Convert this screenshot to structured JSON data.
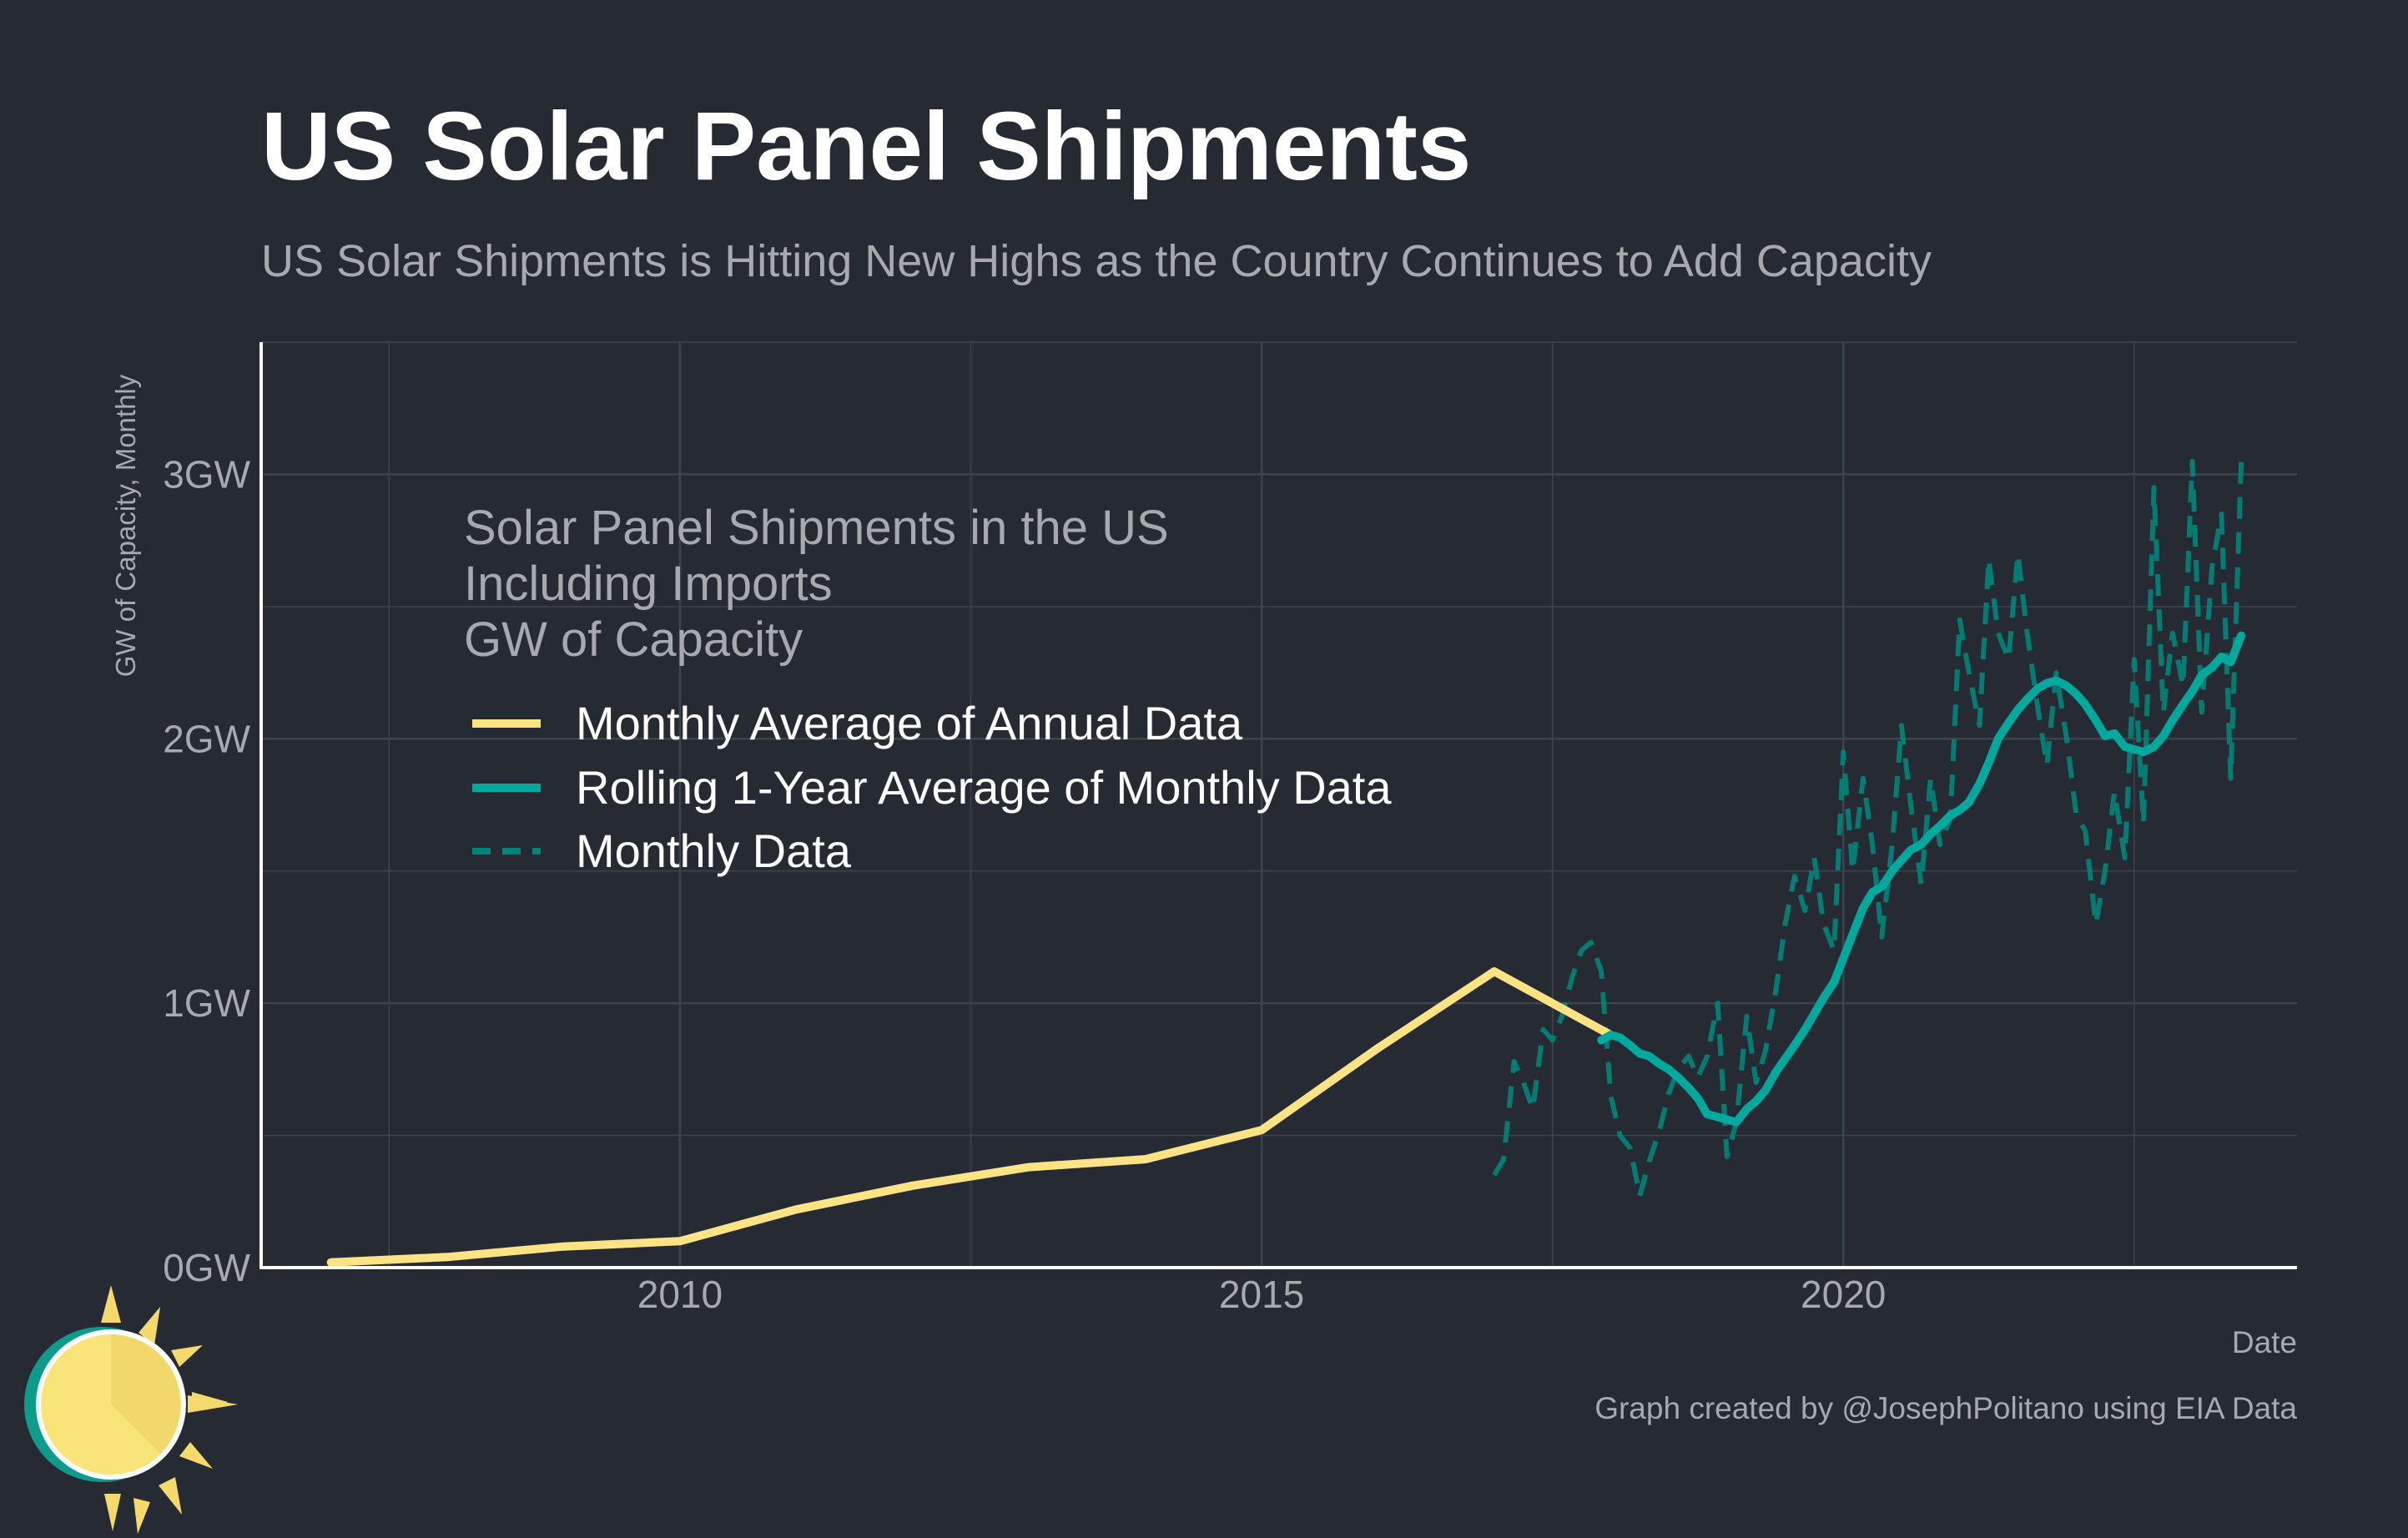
{
  "header": {
    "title": "US Solar Panel Shipments",
    "subtitle": "US Solar Shipments is Hitting New Highs as the Country Continues to Add Capacity"
  },
  "footer": {
    "caption": "Graph created by @JosephPolitano using EIA Data"
  },
  "colors": {
    "background": "#252a33",
    "annual": "#fde383",
    "rolling": "#00a99d",
    "monthly": "#00857a",
    "grid": "#3e444e",
    "axis": "#ffffff",
    "muted_text": "#a7a9ad"
  },
  "chart_data": {
    "type": "line",
    "xlabel": "Date",
    "ylabel": "GW of Capacity, Monthly",
    "xlim": [
      2006.4,
      2023.9
    ],
    "ylim": [
      0,
      3.5
    ],
    "x_ticks": [
      2010,
      2015,
      2020
    ],
    "x_tick_labels": [
      "2010",
      "2015",
      "2020"
    ],
    "y_ticks": [
      0,
      1,
      2,
      3
    ],
    "y_tick_labels": [
      "0GW",
      "1GW",
      "2GW",
      "3GW"
    ],
    "grid": true,
    "legend": {
      "title_lines": [
        "Solar Panel Shipments in the US",
        "Including Imports",
        "GW of Capacity"
      ],
      "placement": "upper-left"
    },
    "series": [
      {
        "name": "Monthly Average of Annual Data",
        "style": "solid",
        "color": "#fde383",
        "points": [
          [
            2007,
            0.02
          ],
          [
            2008,
            0.04
          ],
          [
            2009,
            0.08
          ],
          [
            2010,
            0.1
          ],
          [
            2011,
            0.22
          ],
          [
            2012,
            0.31
          ],
          [
            2013,
            0.38
          ],
          [
            2014,
            0.41
          ],
          [
            2015,
            0.52
          ],
          [
            2016,
            0.83
          ],
          [
            2017,
            1.12
          ],
          [
            2018,
            0.88
          ]
        ]
      },
      {
        "name": "Rolling 1-Year Average of Monthly Data",
        "style": "solid",
        "color": "#00a99d",
        "points": [
          [
            2017.92,
            0.86
          ],
          [
            2018.0,
            0.88
          ],
          [
            2018.08,
            0.87
          ],
          [
            2018.17,
            0.84
          ],
          [
            2018.25,
            0.81
          ],
          [
            2018.33,
            0.8
          ],
          [
            2018.42,
            0.77
          ],
          [
            2018.5,
            0.75
          ],
          [
            2018.58,
            0.72
          ],
          [
            2018.67,
            0.68
          ],
          [
            2018.75,
            0.64
          ],
          [
            2018.83,
            0.58
          ],
          [
            2018.92,
            0.57
          ],
          [
            2019.0,
            0.56
          ],
          [
            2019.08,
            0.55
          ],
          [
            2019.17,
            0.6
          ],
          [
            2019.25,
            0.63
          ],
          [
            2019.33,
            0.67
          ],
          [
            2019.42,
            0.74
          ],
          [
            2019.5,
            0.79
          ],
          [
            2019.58,
            0.84
          ],
          [
            2019.67,
            0.9
          ],
          [
            2019.75,
            0.96
          ],
          [
            2019.83,
            1.02
          ],
          [
            2019.92,
            1.08
          ],
          [
            2020.0,
            1.17
          ],
          [
            2020.08,
            1.26
          ],
          [
            2020.17,
            1.36
          ],
          [
            2020.25,
            1.42
          ],
          [
            2020.33,
            1.44
          ],
          [
            2020.42,
            1.5
          ],
          [
            2020.5,
            1.54
          ],
          [
            2020.58,
            1.58
          ],
          [
            2020.67,
            1.6
          ],
          [
            2020.75,
            1.64
          ],
          [
            2020.83,
            1.67
          ],
          [
            2020.92,
            1.71
          ],
          [
            2021.0,
            1.73
          ],
          [
            2021.08,
            1.76
          ],
          [
            2021.17,
            1.83
          ],
          [
            2021.25,
            1.91
          ],
          [
            2021.33,
            2.0
          ],
          [
            2021.42,
            2.06
          ],
          [
            2021.5,
            2.11
          ],
          [
            2021.58,
            2.15
          ],
          [
            2021.67,
            2.19
          ],
          [
            2021.75,
            2.21
          ],
          [
            2021.83,
            2.22
          ],
          [
            2021.92,
            2.2
          ],
          [
            2022.0,
            2.17
          ],
          [
            2022.08,
            2.13
          ],
          [
            2022.17,
            2.07
          ],
          [
            2022.25,
            2.01
          ],
          [
            2022.33,
            2.02
          ],
          [
            2022.42,
            1.97
          ],
          [
            2022.5,
            1.96
          ],
          [
            2022.58,
            1.95
          ],
          [
            2022.67,
            1.97
          ],
          [
            2022.75,
            2.01
          ],
          [
            2022.83,
            2.07
          ],
          [
            2022.92,
            2.13
          ],
          [
            2023.0,
            2.18
          ],
          [
            2023.08,
            2.24
          ],
          [
            2023.17,
            2.27
          ],
          [
            2023.25,
            2.31
          ],
          [
            2023.33,
            2.29
          ],
          [
            2023.42,
            2.39
          ]
        ]
      },
      {
        "name": "Monthly Data",
        "style": "dashed",
        "color": "#00857a",
        "points": [
          [
            2017.0,
            0.35
          ],
          [
            2017.08,
            0.41
          ],
          [
            2017.17,
            0.78
          ],
          [
            2017.25,
            0.7
          ],
          [
            2017.33,
            0.6
          ],
          [
            2017.42,
            0.9
          ],
          [
            2017.5,
            0.86
          ],
          [
            2017.58,
            0.95
          ],
          [
            2017.67,
            1.1
          ],
          [
            2017.75,
            1.2
          ],
          [
            2017.83,
            1.23
          ],
          [
            2017.92,
            1.12
          ],
          [
            2018.0,
            0.65
          ],
          [
            2018.08,
            0.5
          ],
          [
            2018.17,
            0.45
          ],
          [
            2018.25,
            0.27
          ],
          [
            2018.33,
            0.4
          ],
          [
            2018.42,
            0.52
          ],
          [
            2018.5,
            0.66
          ],
          [
            2018.58,
            0.75
          ],
          [
            2018.67,
            0.8
          ],
          [
            2018.75,
            0.72
          ],
          [
            2018.83,
            0.8
          ],
          [
            2018.92,
            1.0
          ],
          [
            2019.0,
            0.42
          ],
          [
            2019.08,
            0.55
          ],
          [
            2019.17,
            0.95
          ],
          [
            2019.25,
            0.7
          ],
          [
            2019.33,
            0.82
          ],
          [
            2019.42,
            1.05
          ],
          [
            2019.5,
            1.3
          ],
          [
            2019.58,
            1.48
          ],
          [
            2019.67,
            1.35
          ],
          [
            2019.75,
            1.55
          ],
          [
            2019.83,
            1.3
          ],
          [
            2019.92,
            1.2
          ],
          [
            2020.0,
            1.95
          ],
          [
            2020.08,
            1.5
          ],
          [
            2020.17,
            1.85
          ],
          [
            2020.25,
            1.6
          ],
          [
            2020.33,
            1.25
          ],
          [
            2020.42,
            1.6
          ],
          [
            2020.5,
            2.05
          ],
          [
            2020.58,
            1.75
          ],
          [
            2020.67,
            1.45
          ],
          [
            2020.75,
            1.85
          ],
          [
            2020.83,
            1.6
          ],
          [
            2020.92,
            1.7
          ],
          [
            2021.0,
            2.45
          ],
          [
            2021.08,
            2.25
          ],
          [
            2021.17,
            2.05
          ],
          [
            2021.25,
            2.68
          ],
          [
            2021.33,
            2.4
          ],
          [
            2021.42,
            2.3
          ],
          [
            2021.5,
            2.7
          ],
          [
            2021.58,
            2.4
          ],
          [
            2021.67,
            2.12
          ],
          [
            2021.75,
            1.9
          ],
          [
            2021.83,
            2.25
          ],
          [
            2021.92,
            2.0
          ],
          [
            2022.0,
            1.72
          ],
          [
            2022.08,
            1.65
          ],
          [
            2022.17,
            1.3
          ],
          [
            2022.25,
            1.5
          ],
          [
            2022.33,
            1.8
          ],
          [
            2022.42,
            1.55
          ],
          [
            2022.5,
            2.3
          ],
          [
            2022.58,
            1.68
          ],
          [
            2022.67,
            2.95
          ],
          [
            2022.75,
            2.1
          ],
          [
            2022.83,
            2.4
          ],
          [
            2022.92,
            2.2
          ],
          [
            2023.0,
            3.05
          ],
          [
            2023.08,
            2.1
          ],
          [
            2023.17,
            2.65
          ],
          [
            2023.25,
            2.85
          ],
          [
            2023.33,
            1.85
          ],
          [
            2023.42,
            3.05
          ]
        ]
      }
    ]
  }
}
